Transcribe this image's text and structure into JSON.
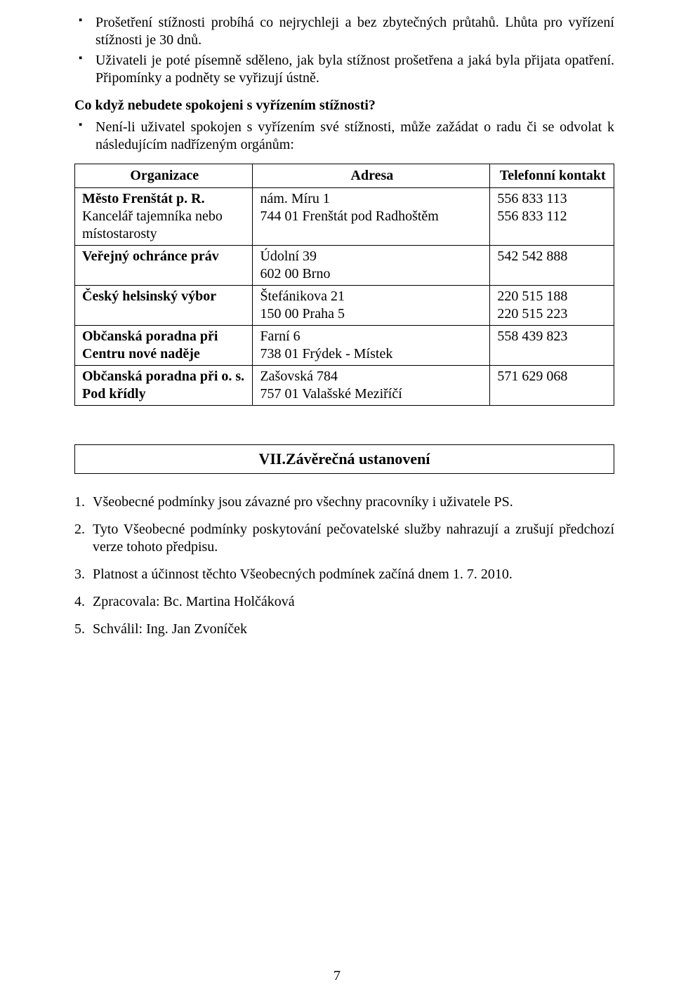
{
  "bullets1": [
    "Prošetření stížnosti probíhá co nejrychleji a bez zbytečných průtahů. Lhůta pro vyřízení stížnosti je 30 dnů.",
    "Uživateli je poté písemně sděleno, jak byla stížnost prošetřena a jaká byla přijata opatření. Připomínky a podněty se vyřizují ústně."
  ],
  "heading2": "Co když nebudete spokojeni s vyřízením stížnosti?",
  "bullets2": [
    "Není-li uživatel spokojen s vyřízením své stížnosti, může zažádat o radu či se odvolat k následujícím nadřízeným orgánům:"
  ],
  "table": {
    "headers": {
      "org": "Organizace",
      "adr": "Adresa",
      "tel": "Telefonní kontakt"
    },
    "rows": [
      {
        "org_bold": "Město Frenštát p. R.",
        "org_rest": "Kancelář tajemníka nebo místostarosty",
        "adr": "nám. Míru 1\n744 01  Frenštát pod Radhoštěm",
        "tel": "556 833 113\n556 833 112"
      },
      {
        "org_bold": "Veřejný ochránce práv",
        "org_rest": "",
        "adr": "Údolní 39\n602 00 Brno",
        "tel": "542 542 888"
      },
      {
        "org_bold": "Český helsinský výbor",
        "org_rest": "",
        "adr": "Štefánikova 21\n150 00 Praha 5",
        "tel": "220 515 188\n220 515 223"
      },
      {
        "org_bold": "Občanská poradna při Centru nové naděje",
        "org_rest": "",
        "adr": "Farní 6\n738 01 Frýdek - Místek",
        "tel": "558 439 823"
      },
      {
        "org_bold": "Občanská poradna při o. s. Pod křídly",
        "org_rest": "",
        "adr": "Zašovská 784\n757 01 Valašské Meziříčí",
        "tel": "571 629 068"
      }
    ]
  },
  "section7": "VII.Závěrečná ustanovení",
  "numbered": [
    {
      "n": "1.",
      "t": "Všeobecné podmínky jsou závazné pro všechny pracovníky i uživatele PS."
    },
    {
      "n": "2.",
      "t": "Tyto Všeobecné podmínky poskytování pečovatelské služby nahrazují a zrušují předchozí verze tohoto předpisu."
    },
    {
      "n": "3.",
      "t": "Platnost a účinnost těchto Všeobecných podmínek začíná dnem 1. 7. 2010."
    },
    {
      "n": "4.",
      "t": "Zpracovala: Bc. Martina Holčáková"
    },
    {
      "n": "5.",
      "t": "Schválil: Ing. Jan Zvoníček"
    }
  ],
  "pageNumber": "7"
}
